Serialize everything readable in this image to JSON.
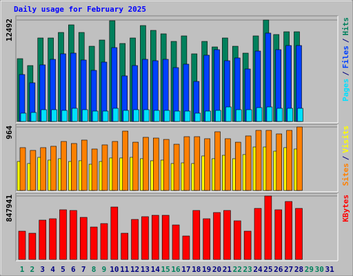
{
  "chart_data": [
    {
      "type": "bar",
      "title": "Daily usage for February 2025",
      "ylim": [
        0,
        12492
      ],
      "yticks": [
        12492
      ],
      "separator": "/",
      "series": [
        {
          "name": "Hits",
          "color": "#00805c",
          "values": [
            7733,
            6883,
            10282,
            10282,
            10962,
            11897,
            10962,
            9263,
            10027,
            12407,
            9603,
            10282,
            11812,
            11217,
            10792,
            9858,
            10537,
            8328,
            9858,
            9178,
            10282,
            9263,
            8413,
            10537,
            12492,
            10707,
            11047,
            11047,
            null,
            null,
            null
          ]
        },
        {
          "name": "Files",
          "color": "#0040ff",
          "values": [
            5780,
            4760,
            6970,
            7650,
            8330,
            8415,
            7565,
            6290,
            7310,
            9095,
            5610,
            6885,
            7650,
            7480,
            7650,
            6630,
            7055,
            4930,
            8160,
            8840,
            7480,
            7820,
            6460,
            8670,
            10880,
            8840,
            9350,
            9350,
            null,
            null,
            null
          ]
        },
        {
          "name": "Pages",
          "color": "#00e0ff",
          "values": [
            1020,
            1105,
            1445,
            1445,
            1360,
            1615,
            1445,
            1275,
            1275,
            1615,
            1360,
            1445,
            1445,
            1360,
            1360,
            1275,
            1275,
            1020,
            1275,
            1360,
            1785,
            1445,
            1445,
            1700,
            1785,
            1615,
            1615,
            1615,
            null,
            null,
            null
          ]
        }
      ]
    },
    {
      "type": "bar",
      "ylim": [
        0,
        964
      ],
      "yticks": [
        964
      ],
      "separator": "/",
      "series": [
        {
          "name": "Visits",
          "color": "#ffff00",
          "values": [
            440,
            409,
            503,
            461,
            482,
            440,
            451,
            398,
            440,
            493,
            493,
            503,
            482,
            451,
            461,
            409,
            419,
            409,
            524,
            482,
            534,
            482,
            545,
            660,
            660,
            597,
            650,
            629,
            null,
            null,
            null
          ]
        },
        {
          "name": "Sites",
          "color": "#ff8000",
          "values": [
            650,
            608,
            650,
            671,
            744,
            713,
            765,
            629,
            692,
            744,
            901,
            733,
            807,
            796,
            775,
            702,
            817,
            817,
            786,
            891,
            786,
            733,
            828,
            912,
            912,
            859,
            912,
            964,
            null,
            null,
            null
          ]
        }
      ]
    },
    {
      "type": "bar",
      "ylim": [
        0,
        847941
      ],
      "yticks": [
        847941
      ],
      "categories": [
        "1",
        "2",
        "3",
        "4",
        "5",
        "6",
        "7",
        "8",
        "9",
        "10",
        "11",
        "12",
        "13",
        "14",
        "15",
        "16",
        "17",
        "18",
        "19",
        "20",
        "21",
        "22",
        "23",
        "24",
        "25",
        "26",
        "27",
        "28",
        "29",
        "30",
        "31"
      ],
      "category_colors": [
        "#00805c",
        "#00805c",
        "#000080",
        "#000080",
        "#000080",
        "#000080",
        "#000080",
        "#00805c",
        "#00805c",
        "#000080",
        "#000080",
        "#000080",
        "#000080",
        "#000080",
        "#00805c",
        "#00805c",
        "#000080",
        "#000080",
        "#000080",
        "#000080",
        "#000080",
        "#00805c",
        "#00805c",
        "#000080",
        "#000080",
        "#000080",
        "#000080",
        "#000080",
        "#00805c",
        "#00805c",
        "#000080"
      ],
      "series": [
        {
          "name": "KBytes",
          "color": "#ff0000",
          "values": [
            377897,
            350246,
            525369,
            543803,
            663624,
            654407,
            562237,
            433199,
            479284,
            700492,
            350246,
            534586,
            571454,
            589888,
            589888,
            460850,
            313378,
            654407,
            543803,
            626756,
            654407,
            516152,
            377897,
            682058,
            847941,
            663624,
            774228,
            682058,
            null,
            null,
            null
          ]
        }
      ]
    }
  ]
}
